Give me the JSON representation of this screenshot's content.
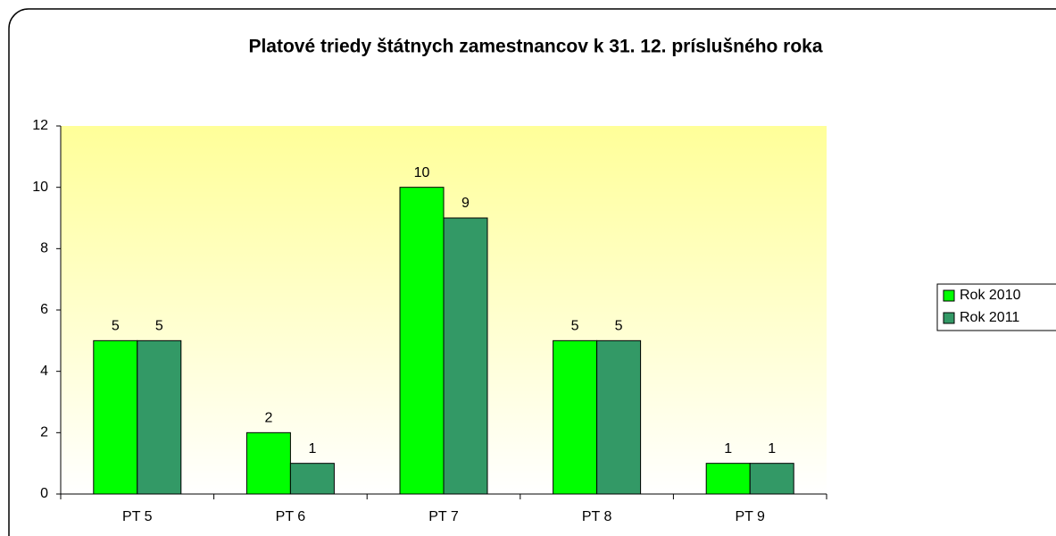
{
  "chart_data": {
    "type": "bar",
    "title": "Platové triedy štátnych zamestnancov k 31. 12. príslušného roka",
    "categories": [
      "PT 5",
      "PT 6",
      "PT 7",
      "PT 8",
      "PT 9"
    ],
    "series": [
      {
        "name": "Rok 2010",
        "color": "#00ff00",
        "values": [
          5,
          2,
          10,
          5,
          1
        ]
      },
      {
        "name": "Rok 2011",
        "color": "#339966",
        "values": [
          5,
          1,
          9,
          5,
          1
        ]
      }
    ],
    "ylim": [
      0,
      12
    ],
    "yticks": [
      0,
      2,
      4,
      6,
      8,
      10,
      12
    ],
    "grid": false,
    "legend": "right"
  }
}
